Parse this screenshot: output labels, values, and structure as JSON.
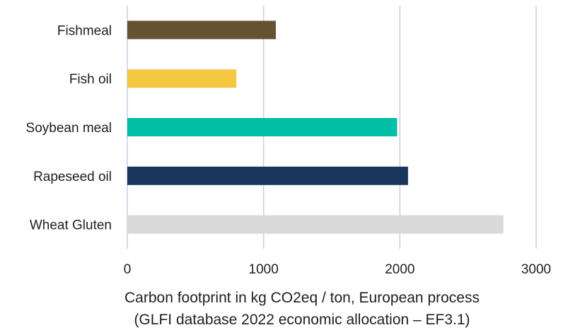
{
  "chart_data": {
    "type": "bar",
    "orientation": "horizontal",
    "categories": [
      "Fishmeal",
      "Fish oil",
      "Soybean meal",
      "Rapeseed oil",
      "Wheat Gluten"
    ],
    "values": [
      1090,
      800,
      1980,
      2060,
      2760
    ],
    "colors": [
      "#655233",
      "#f5c842",
      "#00bfa5",
      "#1b365d",
      "#d9d9d9"
    ],
    "xlim": [
      0,
      3000
    ],
    "xticks": [
      0,
      1000,
      2000,
      3000
    ],
    "xlabel": "Carbon footprint in kg CO2eq / ton, European process",
    "xlabel_line2": "(GLFI database 2022 economic allocation – EF3.1)",
    "ylabel": "",
    "grid": "vertical",
    "gridline_color": "#c9cde6",
    "legend": "none"
  }
}
